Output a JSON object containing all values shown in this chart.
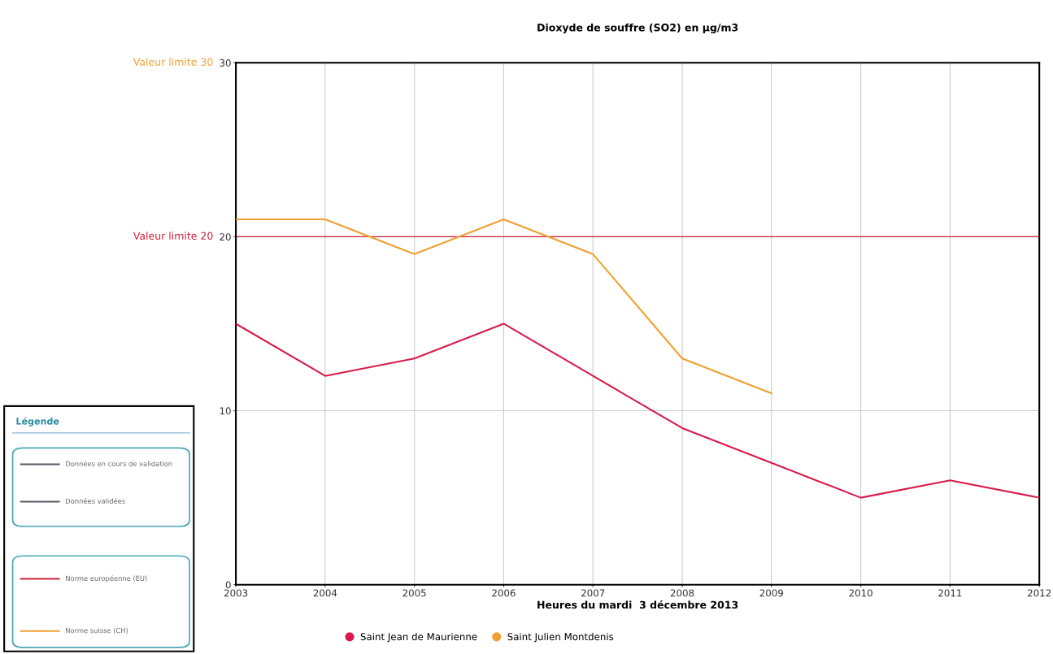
{
  "chart_data": {
    "type": "line",
    "title": "Dioxyde de souffre (SO2) en µg/m3",
    "xlabel": "Heures du mardi  3 décembre 2013",
    "x": [
      2003,
      2004,
      2005,
      2006,
      2007,
      2008,
      2009,
      2010,
      2011,
      2012
    ],
    "series": [
      {
        "name": "Saint Jean de Maurienne",
        "color": "#d81b4a",
        "values": [
          15,
          12,
          13,
          15,
          12,
          9,
          7,
          5,
          6,
          5
        ]
      },
      {
        "name": "Saint Julien Montdenis",
        "color": "#f0a030",
        "values": [
          21,
          21,
          19,
          21,
          19,
          13,
          11,
          null,
          null,
          null
        ]
      }
    ],
    "xlim": [
      2003,
      2012
    ],
    "xticks": [
      2003,
      2004,
      2005,
      2006,
      2007,
      2008,
      2009,
      2010,
      2011,
      2012
    ],
    "ylim": [
      0,
      30
    ],
    "yticks": [
      0,
      10,
      20,
      30
    ],
    "ref_lines": [
      {
        "axis": "y",
        "value": 20,
        "label": "Valeur limite 20",
        "color": "#d0203a"
      },
      {
        "axis": "y",
        "value": 30,
        "label": "Valeur limite 30",
        "color": "#f0a030"
      }
    ],
    "grid": true,
    "legend": "bottom",
    "marker": "none",
    "line_style": "solid",
    "annotations": [
      "Légende",
      "Données en cours de validation",
      "Données validées",
      "Norme européenne (EU)",
      "Norme suisse (CH)"
    ]
  }
}
